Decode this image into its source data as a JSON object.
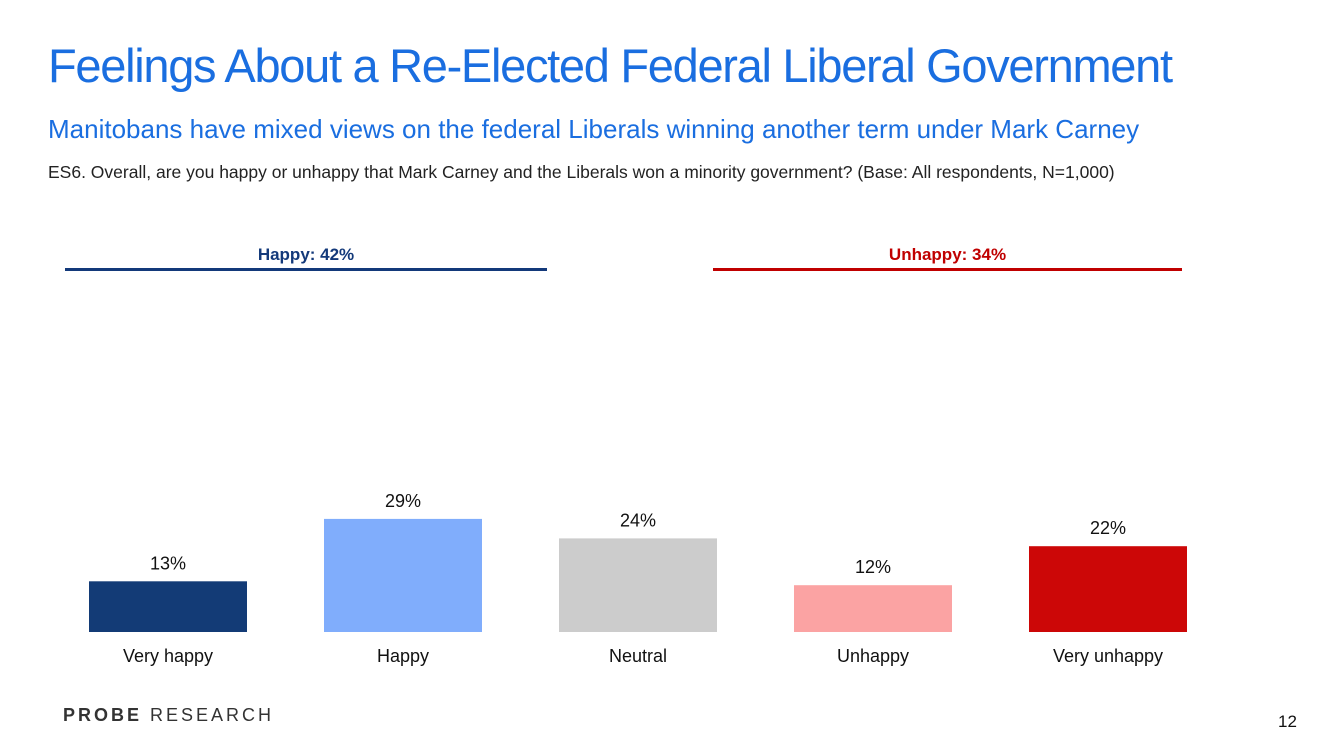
{
  "title": "Feelings About a Re-Elected Federal Liberal Government",
  "subtitle": "Manitobans have mixed views on the federal Liberals winning another term under Mark Carney",
  "question": "ES6. Overall, are you happy or unhappy that Mark Carney and the Liberals won a minority government? (Base: All respondents, N=1,000)",
  "colors": {
    "title": "#1a6ee0",
    "happy_summary": "#13397a",
    "unhappy_summary": "#c00000"
  },
  "summary": {
    "happy": "Happy: 42%",
    "unhappy": "Unhappy: 34%"
  },
  "logo": {
    "bold": "PROBE",
    "light": "RESEARCH"
  },
  "page_number": "12",
  "chart_data": {
    "type": "bar",
    "title": "",
    "xlabel": "",
    "ylabel": "",
    "categories": [
      "Very happy",
      "Happy",
      "Neutral",
      "Unhappy",
      "Very unhappy"
    ],
    "values": [
      13,
      29,
      24,
      12,
      22
    ],
    "value_labels": [
      "13%",
      "29%",
      "24%",
      "12%",
      "22%"
    ],
    "colors": [
      "#133b76",
      "#80adfc",
      "#cccccc",
      "#fba3a3",
      "#cc0707"
    ],
    "ylim": [
      0,
      100
    ],
    "grid": false,
    "legend": "none"
  }
}
